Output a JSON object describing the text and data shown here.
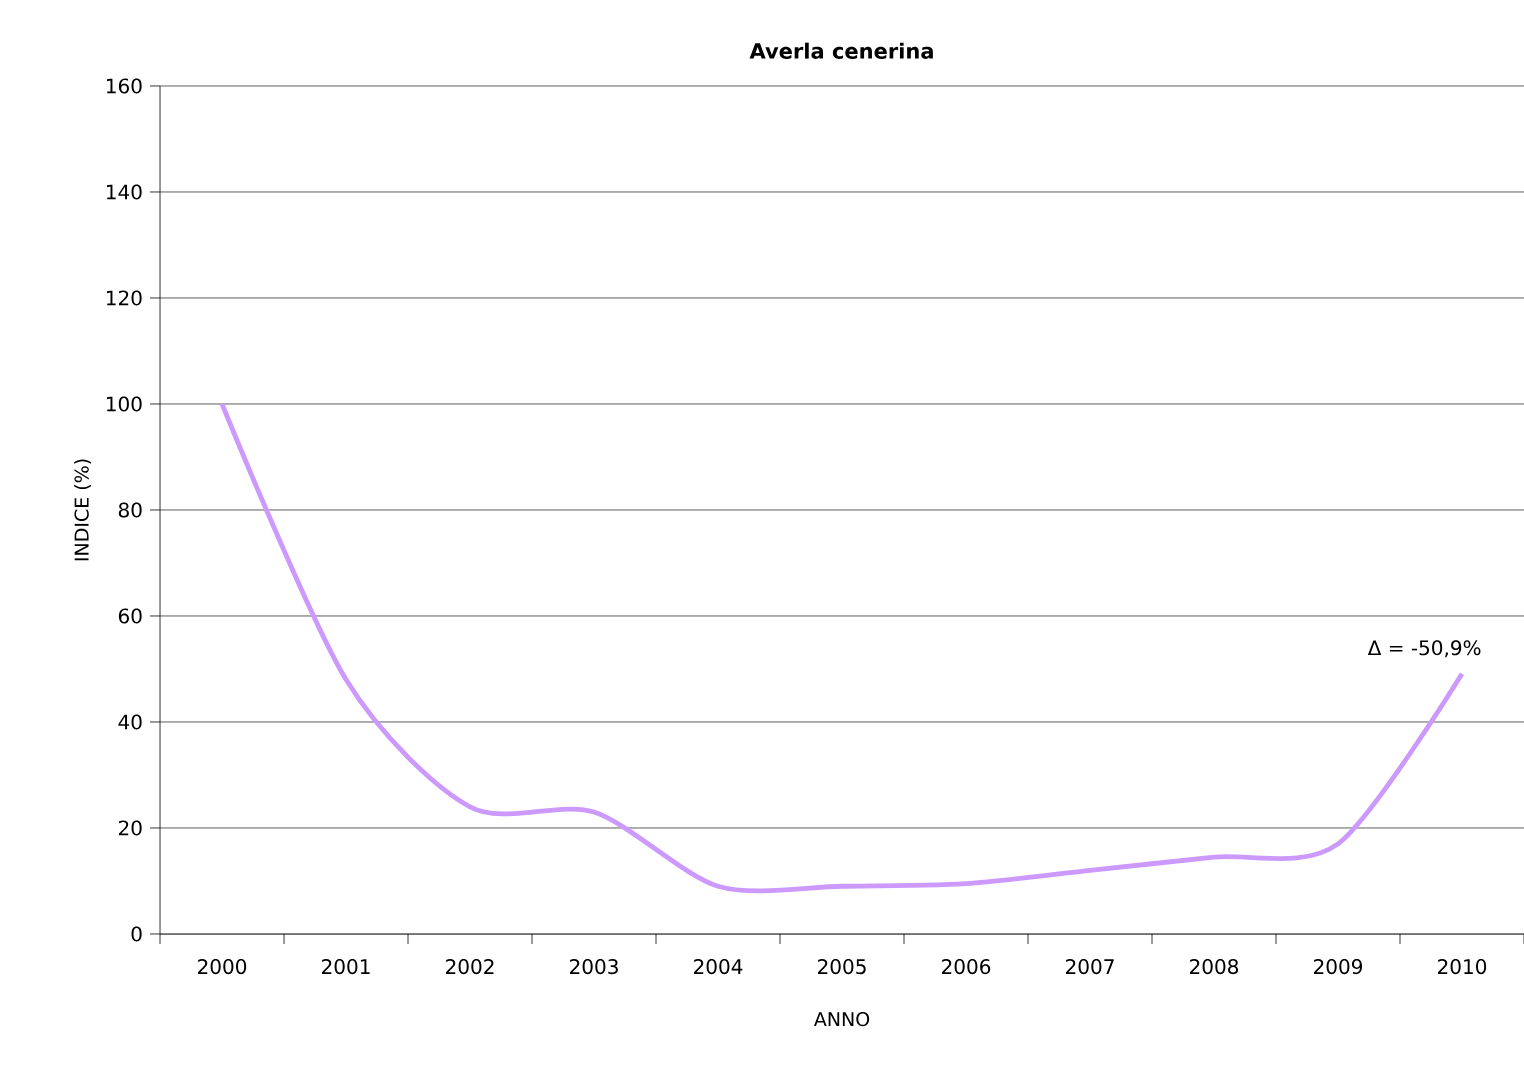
{
  "chart_data": {
    "type": "line",
    "title": "Averla cenerina",
    "xlabel": "ANNO",
    "ylabel": "INDICE (%)",
    "categories": [
      "2000",
      "2001",
      "2002",
      "2003",
      "2004",
      "2005",
      "2006",
      "2007",
      "2008",
      "2009",
      "2010"
    ],
    "series": [
      {
        "color": "#cc99ff",
        "values": [
          100,
          48,
          24,
          23,
          9,
          9,
          9.5,
          12,
          14.5,
          17,
          49.1
        ]
      }
    ],
    "ylim": [
      0,
      160
    ],
    "yticks": [
      0,
      20,
      40,
      60,
      80,
      100,
      120,
      140,
      160
    ],
    "grid": "y",
    "marker": "none",
    "line_style": "solid",
    "annotations": [
      {
        "text": "Δ = -50,9%",
        "x": "2010",
        "y": 49.1
      }
    ]
  }
}
